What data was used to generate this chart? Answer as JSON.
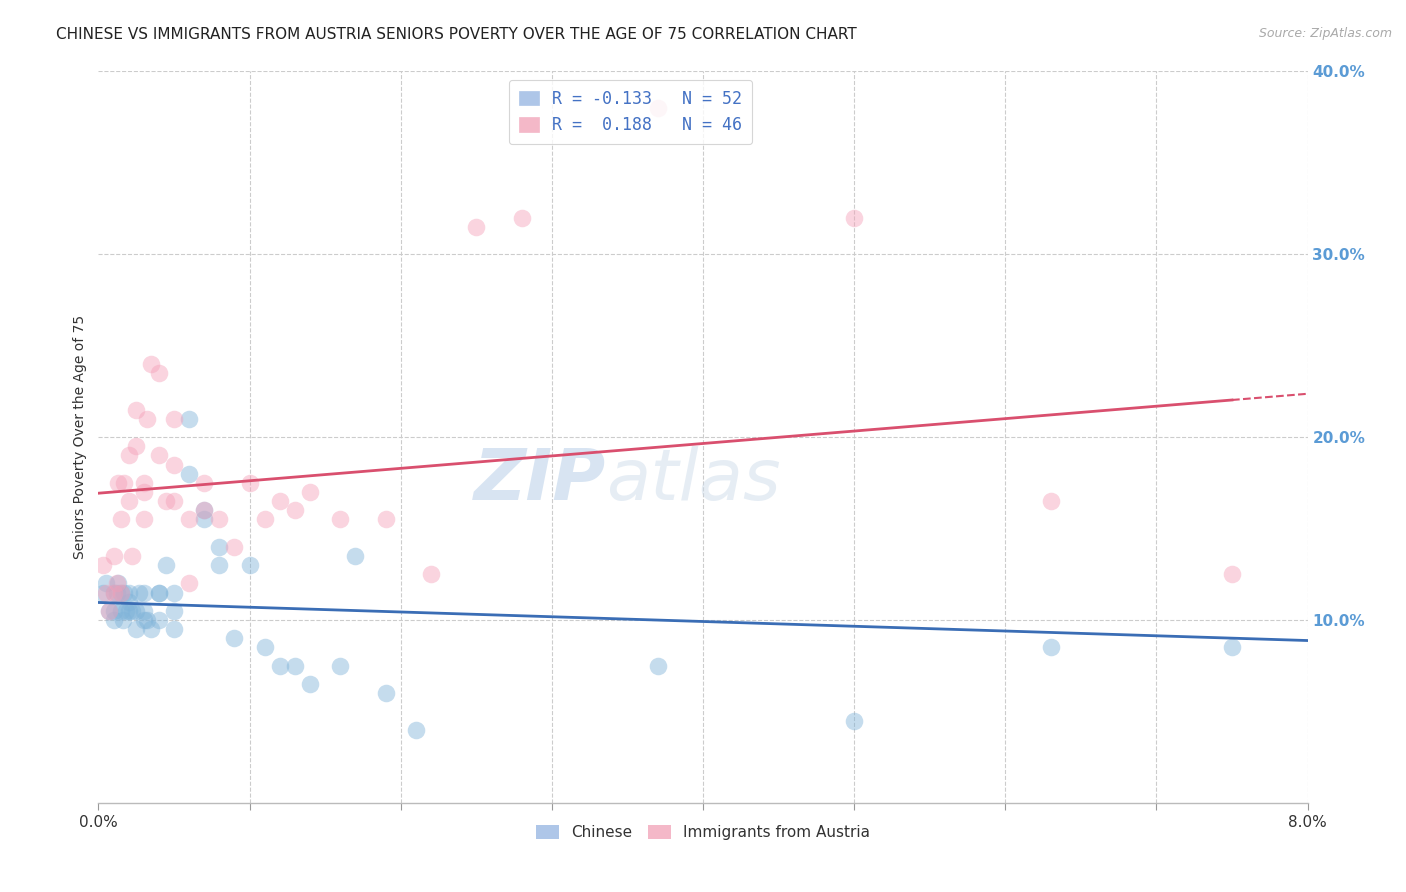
{
  "title": "CHINESE VS IMMIGRANTS FROM AUSTRIA SENIORS POVERTY OVER THE AGE OF 75 CORRELATION CHART",
  "source": "Source: ZipAtlas.com",
  "ylabel": "Seniors Poverty Over the Age of 75",
  "legend_entries": [
    {
      "label": "R = -0.133   N = 52",
      "color": "#aec6e8"
    },
    {
      "label": "R =  0.188   N = 46",
      "color": "#f4b8c8"
    }
  ],
  "legend_labels": [
    "Chinese",
    "Immigrants from Austria"
  ],
  "blue_color": "#7fb3d9",
  "pink_color": "#f4a0b8",
  "trend_blue": "#3a6db5",
  "trend_pink": "#d94f6e",
  "background_color": "#ffffff",
  "watermark_zip": "ZIP",
  "watermark_atlas": "atlas",
  "xlim": [
    0.0,
    0.08
  ],
  "ylim": [
    0.0,
    0.4
  ],
  "chinese_x": [
    0.0003,
    0.0005,
    0.0007,
    0.001,
    0.001,
    0.001,
    0.0012,
    0.0013,
    0.0015,
    0.0015,
    0.0016,
    0.0017,
    0.0018,
    0.002,
    0.002,
    0.002,
    0.0022,
    0.0025,
    0.0025,
    0.0027,
    0.003,
    0.003,
    0.003,
    0.0032,
    0.0035,
    0.004,
    0.004,
    0.004,
    0.0045,
    0.005,
    0.005,
    0.005,
    0.006,
    0.006,
    0.007,
    0.007,
    0.008,
    0.008,
    0.009,
    0.01,
    0.011,
    0.012,
    0.013,
    0.014,
    0.016,
    0.017,
    0.019,
    0.021,
    0.037,
    0.05,
    0.063,
    0.075
  ],
  "chinese_y": [
    0.115,
    0.12,
    0.105,
    0.115,
    0.105,
    0.1,
    0.115,
    0.12,
    0.105,
    0.115,
    0.1,
    0.115,
    0.105,
    0.105,
    0.11,
    0.115,
    0.105,
    0.095,
    0.105,
    0.115,
    0.1,
    0.115,
    0.105,
    0.1,
    0.095,
    0.1,
    0.115,
    0.115,
    0.13,
    0.095,
    0.105,
    0.115,
    0.18,
    0.21,
    0.155,
    0.16,
    0.13,
    0.14,
    0.09,
    0.13,
    0.085,
    0.075,
    0.075,
    0.065,
    0.075,
    0.135,
    0.06,
    0.04,
    0.075,
    0.045,
    0.085,
    0.085
  ],
  "austria_x": [
    0.0003,
    0.0005,
    0.0007,
    0.001,
    0.001,
    0.0012,
    0.0013,
    0.0015,
    0.0015,
    0.0017,
    0.002,
    0.002,
    0.0022,
    0.0025,
    0.0025,
    0.003,
    0.003,
    0.003,
    0.0032,
    0.0035,
    0.004,
    0.004,
    0.0045,
    0.005,
    0.005,
    0.005,
    0.006,
    0.006,
    0.007,
    0.007,
    0.008,
    0.009,
    0.01,
    0.011,
    0.012,
    0.013,
    0.014,
    0.016,
    0.019,
    0.022,
    0.025,
    0.028,
    0.037,
    0.05,
    0.063,
    0.075
  ],
  "austria_y": [
    0.13,
    0.115,
    0.105,
    0.135,
    0.115,
    0.12,
    0.175,
    0.115,
    0.155,
    0.175,
    0.165,
    0.19,
    0.135,
    0.195,
    0.215,
    0.155,
    0.17,
    0.175,
    0.21,
    0.24,
    0.19,
    0.235,
    0.165,
    0.185,
    0.165,
    0.21,
    0.155,
    0.12,
    0.16,
    0.175,
    0.155,
    0.14,
    0.175,
    0.155,
    0.165,
    0.16,
    0.17,
    0.155,
    0.155,
    0.125,
    0.315,
    0.32,
    0.38,
    0.32,
    0.165,
    0.125
  ],
  "title_fontsize": 11,
  "axis_fontsize": 10,
  "marker_size": 160,
  "marker_alpha": 0.45,
  "grid_color": "#cccccc",
  "right_axis_color": "#5b9bd5"
}
